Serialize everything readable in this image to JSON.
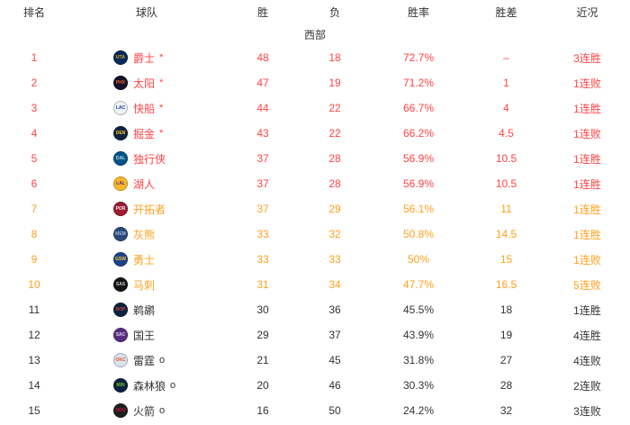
{
  "colors": {
    "playoff_red": "#ff4444",
    "playin_orange": "#ffa11e",
    "normal_black": "#333333",
    "header_text": "#333333",
    "background": "#ffffff"
  },
  "table": {
    "headers": [
      "排名",
      "球队",
      "胜",
      "负",
      "胜率",
      "胜差",
      "近况"
    ],
    "subtitle": "西部",
    "rows": [
      {
        "rank": "1",
        "team": "爵士",
        "abbr": "UTA",
        "marker": "*",
        "wins": "48",
        "losses": "18",
        "pct": "72.7%",
        "gb": "–",
        "streak": "3连胜",
        "color": "#ff4444",
        "logo_bg": "#002b5c",
        "logo_fg": "#f9a01b"
      },
      {
        "rank": "2",
        "team": "太阳",
        "abbr": "PHX",
        "marker": "*",
        "wins": "47",
        "losses": "19",
        "pct": "71.2%",
        "gb": "1",
        "streak": "1连败",
        "color": "#ff4444",
        "logo_bg": "#17112b",
        "logo_fg": "#e56020"
      },
      {
        "rank": "3",
        "team": "快船",
        "abbr": "LAC",
        "marker": "*",
        "wins": "44",
        "losses": "22",
        "pct": "66.7%",
        "gb": "4",
        "streak": "1连胜",
        "color": "#ff4444",
        "logo_bg": "#eef1f5",
        "logo_fg": "#1d428a"
      },
      {
        "rank": "4",
        "team": "掘金",
        "abbr": "DEN",
        "marker": "*",
        "wins": "43",
        "losses": "22",
        "pct": "66.2%",
        "gb": "4.5",
        "streak": "1连败",
        "color": "#ff4444",
        "logo_bg": "#0e2240",
        "logo_fg": "#fec524"
      },
      {
        "rank": "5",
        "team": "独行侠",
        "abbr": "DAL",
        "marker": "",
        "wins": "37",
        "losses": "28",
        "pct": "56.9%",
        "gb": "10.5",
        "streak": "1连胜",
        "color": "#ff4444",
        "logo_bg": "#00538c",
        "logo_fg": "#c7d3da"
      },
      {
        "rank": "6",
        "team": "湖人",
        "abbr": "LAL",
        "marker": "",
        "wins": "37",
        "losses": "28",
        "pct": "56.9%",
        "gb": "10.5",
        "streak": "1连胜",
        "color": "#ff4444",
        "logo_bg": "#fdb927",
        "logo_fg": "#552583"
      },
      {
        "rank": "7",
        "team": "开拓者",
        "abbr": "POR",
        "marker": "",
        "wins": "37",
        "losses": "29",
        "pct": "56.1%",
        "gb": "11",
        "streak": "1连胜",
        "color": "#ffa11e",
        "logo_bg": "#9e1b32",
        "logo_fg": "#f0f0f0"
      },
      {
        "rank": "8",
        "team": "灰熊",
        "abbr": "MEM",
        "marker": "",
        "wins": "33",
        "losses": "32",
        "pct": "50.8%",
        "gb": "14.5",
        "streak": "1连胜",
        "color": "#ffa11e",
        "logo_bg": "#2b4a7a",
        "logo_fg": "#9eb3d2"
      },
      {
        "rank": "9",
        "team": "勇士",
        "abbr": "GSW",
        "marker": "",
        "wins": "33",
        "losses": "33",
        "pct": "50%",
        "gb": "15",
        "streak": "1连败",
        "color": "#ffa11e",
        "logo_bg": "#1d428a",
        "logo_fg": "#ffc72c"
      },
      {
        "rank": "10",
        "team": "马刺",
        "abbr": "SAS",
        "marker": "",
        "wins": "31",
        "losses": "34",
        "pct": "47.7%",
        "gb": "16.5",
        "streak": "5连败",
        "color": "#ffa11e",
        "logo_bg": "#141414",
        "logo_fg": "#c4ced4"
      },
      {
        "rank": "11",
        "team": "鹈鹕",
        "abbr": "NOP",
        "marker": "",
        "wins": "30",
        "losses": "36",
        "pct": "45.5%",
        "gb": "18",
        "streak": "1连胜",
        "color": "#333333",
        "logo_bg": "#0c2340",
        "logo_fg": "#d13c49"
      },
      {
        "rank": "12",
        "team": "国王",
        "abbr": "SAC",
        "marker": "",
        "wins": "29",
        "losses": "37",
        "pct": "43.9%",
        "gb": "19",
        "streak": "4连胜",
        "color": "#333333",
        "logo_bg": "#5a2d81",
        "logo_fg": "#dcd3e6"
      },
      {
        "rank": "13",
        "team": "雷霆",
        "abbr": "OKC",
        "marker": "o",
        "wins": "21",
        "losses": "45",
        "pct": "31.8%",
        "gb": "27",
        "streak": "4连败",
        "color": "#333333",
        "logo_bg": "#d9e4ee",
        "logo_fg": "#ef5133"
      },
      {
        "rank": "14",
        "team": "森林狼",
        "abbr": "MIN",
        "marker": "o",
        "wins": "20",
        "losses": "46",
        "pct": "30.3%",
        "gb": "28",
        "streak": "2连败",
        "color": "#333333",
        "logo_bg": "#0c2340",
        "logo_fg": "#78be20"
      },
      {
        "rank": "15",
        "team": "火箭",
        "abbr": "HOU",
        "marker": "o",
        "wins": "16",
        "losses": "50",
        "pct": "24.2%",
        "gb": "32",
        "streak": "3连败",
        "color": "#333333",
        "logo_bg": "#1f1f1f",
        "logo_fg": "#ce1141"
      }
    ]
  }
}
